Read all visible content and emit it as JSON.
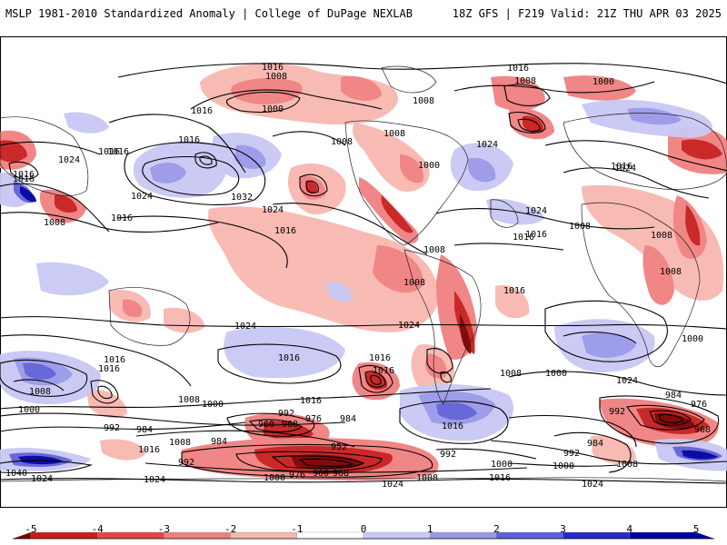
{
  "header": {
    "title_left": "MSLP 1981-2010 Standardized Anomaly | College of DuPage NEXLAB",
    "title_right": "18Z GFS | F219 Valid: 21Z THU APR 03 2025"
  },
  "colorbar": {
    "ticks": [
      "-5",
      "-4",
      "-3",
      "-2",
      "-1",
      "0",
      "1",
      "2",
      "3",
      "4",
      "5"
    ],
    "colors": [
      "#7a0000",
      "#c81e1e",
      "#e04848",
      "#f08080",
      "#f8b8b0",
      "#ffffff",
      "#c8c8f4",
      "#9898e8",
      "#6060d8",
      "#2828c8",
      "#0000a0"
    ]
  },
  "contour_labels": [
    "1016",
    "1008",
    "1000",
    "1016",
    "1008",
    "1000",
    "1016",
    "1016",
    "1016",
    "1024",
    "1016",
    "1024",
    "1032",
    "1024",
    "1016",
    "1008",
    "1008",
    "1008",
    "1000",
    "1024",
    "1024",
    "1016",
    "1008",
    "1016",
    "1024",
    "1016",
    "1008",
    "1008",
    "1008",
    "1008",
    "1008",
    "1016",
    "1024",
    "1016",
    "1016",
    "1016",
    "1024",
    "1008",
    "1016",
    "1016",
    "1000",
    "1008",
    "1000",
    "992",
    "1000",
    "992",
    "984",
    "1016",
    "1008",
    "984",
    "960",
    "968",
    "976",
    "984",
    "992",
    "952",
    "992",
    "1040",
    "1024",
    "1024",
    "1000",
    "976",
    "960",
    "968",
    "1008",
    "1016",
    "1024",
    "1016",
    "1008",
    "1000",
    "1016",
    "1024",
    "984",
    "976",
    "992",
    "968",
    "984",
    "992",
    "1000",
    "1008",
    "1024",
    "1016",
    "1000",
    "1016",
    "1016"
  ]
}
